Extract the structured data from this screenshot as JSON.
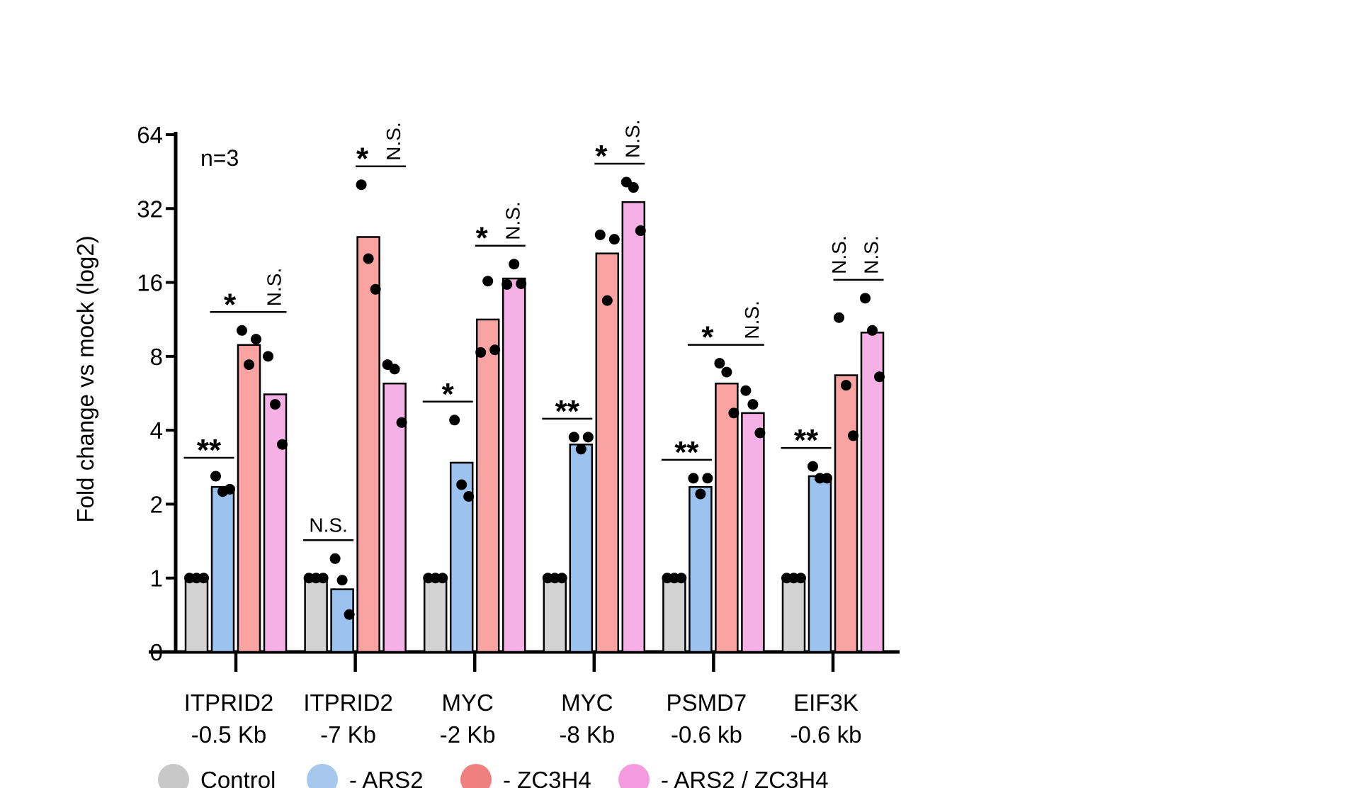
{
  "chart_data": {
    "type": "bar",
    "ylabel": "Fold change vs mock (log2)",
    "yscale": "log2",
    "ylim": [
      0.5,
      64
    ],
    "yticks": [
      {
        "value": 0.5,
        "label": "0"
      },
      {
        "value": 1,
        "label": "1"
      },
      {
        "value": 2,
        "label": "2"
      },
      {
        "value": 4,
        "label": "4"
      },
      {
        "value": 8,
        "label": "8"
      },
      {
        "value": 16,
        "label": "16"
      },
      {
        "value": 32,
        "label": "32"
      },
      {
        "value": 64,
        "label": "64"
      }
    ],
    "annotation": "n=3",
    "grid": false,
    "legend_position": "bottom",
    "categories": [
      {
        "line1": "ITPRID2",
        "line2": "-0.5 Kb"
      },
      {
        "line1": "ITPRID2",
        "line2": "-7 Kb"
      },
      {
        "line1": "MYC",
        "line2": "-2 Kb"
      },
      {
        "line1": "MYC",
        "line2": "-8 Kb"
      },
      {
        "line1": "PSMD7",
        "line2": "-0.6 kb"
      },
      {
        "line1": "EIF3K",
        "line2": "-0.6 kb"
      }
    ],
    "series": [
      {
        "name": "Control",
        "color": "#d3d3d3",
        "legend_color": "#c8c8c8",
        "values": [
          1,
          1,
          1,
          1,
          1,
          1
        ],
        "points": [
          [
            1,
            1,
            1
          ],
          [
            1,
            1,
            1
          ],
          [
            1,
            1,
            1
          ],
          [
            1,
            1,
            1
          ],
          [
            1,
            1,
            1
          ],
          [
            1,
            1,
            1
          ]
        ]
      },
      {
        "name": "- ARS2",
        "color": "#9cc2f0",
        "legend_color": "#a6c8ec",
        "values": [
          2.35,
          0.9,
          2.95,
          3.5,
          2.35,
          2.6
        ],
        "points": [
          [
            2.6,
            2.25,
            2.3
          ],
          [
            1.2,
            0.98,
            0.71
          ],
          [
            4.4,
            2.4,
            2.15
          ],
          [
            3.75,
            3.35,
            3.75
          ],
          [
            2.55,
            2.2,
            2.55
          ],
          [
            2.85,
            2.55,
            2.55
          ]
        ]
      },
      {
        "name": "- ZC3H4",
        "color": "#f9a3a3",
        "legend_color": "#f08080",
        "values": [
          8.9,
          24.5,
          11.3,
          21,
          6.2,
          6.7
        ],
        "points": [
          [
            10.2,
            7.4,
            9.4
          ],
          [
            40,
            20,
            15
          ],
          [
            8.3,
            16.2,
            8.5
          ],
          [
            25,
            13.5,
            24
          ],
          [
            7.5,
            6.9,
            4.7
          ],
          [
            11.5,
            6.1,
            3.8
          ]
        ]
      },
      {
        "name": "- ARS2 / ZC3H4",
        "color": "#f5b0e6",
        "legend_color": "#f49be0",
        "values": [
          5.6,
          6.2,
          16.6,
          34,
          4.7,
          10
        ],
        "points": [
          [
            8,
            5.1,
            3.5
          ],
          [
            7.4,
            7.1,
            4.3
          ],
          [
            15.7,
            19,
            15.8
          ],
          [
            41,
            39,
            26
          ],
          [
            5.8,
            5.1,
            3.9
          ],
          [
            13.8,
            10.2,
            6.6
          ]
        ]
      }
    ],
    "significance": [
      {
        "group": 0,
        "comparisons": [
          {
            "bars": [
              0,
              1
            ],
            "label": "**"
          },
          {
            "bars": [
              1,
              3
            ],
            "label": "*",
            "ns_label": "N.S."
          }
        ]
      },
      {
        "group": 1,
        "comparisons": [
          {
            "bars": [
              0,
              1
            ],
            "label": "N.S."
          },
          {
            "bars": [
              2,
              3
            ],
            "label": "*",
            "ns_label": "N.S."
          }
        ]
      },
      {
        "group": 2,
        "comparisons": [
          {
            "bars": [
              0,
              1
            ],
            "label": "*"
          },
          {
            "bars": [
              2,
              3
            ],
            "label": "*",
            "ns_label": "N.S."
          }
        ]
      },
      {
        "group": 3,
        "comparisons": [
          {
            "bars": [
              0,
              1
            ],
            "label": "**"
          },
          {
            "bars": [
              2,
              3
            ],
            "label": "*",
            "ns_label": "N.S."
          }
        ]
      },
      {
        "group": 4,
        "comparisons": [
          {
            "bars": [
              0,
              1
            ],
            "label": "**"
          },
          {
            "bars": [
              1,
              3
            ],
            "label": "*",
            "ns_label": "N.S."
          }
        ]
      },
      {
        "group": 5,
        "comparisons": [
          {
            "bars": [
              0,
              1
            ],
            "label": "**"
          },
          {
            "bars": [
              2,
              3
            ],
            "label": "N.S.",
            "ns_label": "N.S."
          }
        ]
      }
    ]
  }
}
